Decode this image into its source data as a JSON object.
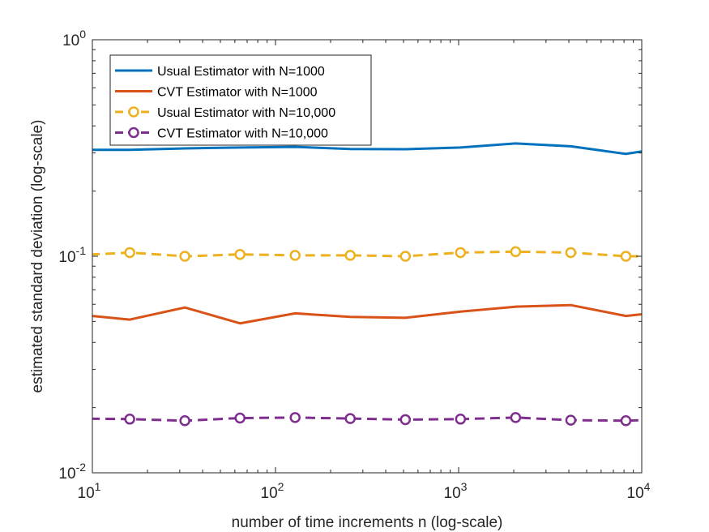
{
  "chart_data": {
    "type": "line",
    "title": "",
    "xlabel": "number of time increments n (log-scale)",
    "ylabel": "estimated standard deviation (log-scale)",
    "xscale": "log",
    "yscale": "log",
    "xlim": [
      10,
      10000
    ],
    "ylim": [
      0.01,
      1
    ],
    "grid": false,
    "legend": "top-left",
    "x_ticks": [
      {
        "base": "10",
        "exp": "1"
      },
      {
        "base": "10",
        "exp": "2"
      },
      {
        "base": "10",
        "exp": "3"
      },
      {
        "base": "10",
        "exp": "4"
      }
    ],
    "y_ticks": [
      {
        "base": "10",
        "exp": "-2",
        "value": 0.01
      },
      {
        "base": "10",
        "exp": "-1",
        "value": 0.1
      },
      {
        "base": "10",
        "exp": "0",
        "value": 1
      }
    ],
    "series": [
      {
        "name": "Usual Estimator with N=1000",
        "color": "#0072BD",
        "style": "solid",
        "marker": "none",
        "x": [
          8,
          16,
          32,
          64,
          128,
          256,
          512,
          1024,
          2048,
          4096,
          8192,
          10000
        ],
        "y": [
          0.31,
          0.31,
          0.315,
          0.318,
          0.32,
          0.313,
          0.312,
          0.318,
          0.332,
          0.322,
          0.297,
          0.305
        ]
      },
      {
        "name": "CVT Estimator with N=1000",
        "color": "#D95319",
        "style": "solid",
        "marker": "none",
        "x": [
          8,
          16,
          32,
          64,
          128,
          256,
          512,
          1024,
          2048,
          4096,
          8192,
          10000
        ],
        "y": [
          0.054,
          0.051,
          0.058,
          0.049,
          0.0545,
          0.0525,
          0.052,
          0.0555,
          0.0585,
          0.0595,
          0.053,
          0.054
        ]
      },
      {
        "name": "Usual Estimator with N=10,000",
        "color": "#EDB120",
        "style": "dashed",
        "marker": "circle",
        "x": [
          8,
          16,
          32,
          64,
          128,
          256,
          512,
          1024,
          2048,
          4096,
          8192,
          10000
        ],
        "y": [
          0.101,
          0.104,
          0.1,
          0.102,
          0.101,
          0.101,
          0.1,
          0.104,
          0.105,
          0.104,
          0.1,
          0.1
        ],
        "marker_x": [
          16,
          32,
          64,
          128,
          256,
          512,
          1024,
          2048,
          4096,
          8192
        ]
      },
      {
        "name": "CVT Estimator with N=10,000",
        "color": "#7E2F8E",
        "style": "dashed",
        "marker": "circle",
        "x": [
          8,
          16,
          32,
          64,
          128,
          256,
          512,
          1024,
          2048,
          4096,
          8192,
          10000
        ],
        "y": [
          0.0178,
          0.0177,
          0.0174,
          0.0179,
          0.018,
          0.0178,
          0.0176,
          0.0177,
          0.018,
          0.0175,
          0.0174,
          0.0175
        ],
        "marker_x": [
          16,
          32,
          64,
          128,
          256,
          512,
          1024,
          2048,
          4096,
          8192
        ]
      }
    ]
  }
}
